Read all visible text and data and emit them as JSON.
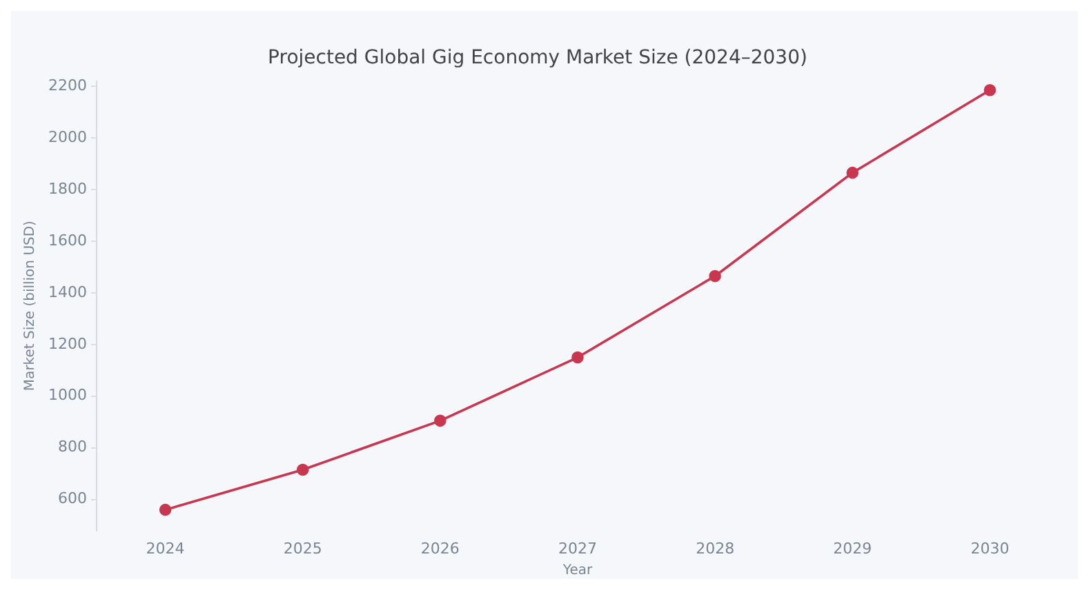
{
  "chart_data": {
    "type": "line",
    "title": "Projected Global Gig Economy Market Size (2024–2030)",
    "xlabel": "Year",
    "ylabel": "Market Size (billion USD)",
    "categories": [
      "2024",
      "2025",
      "2026",
      "2027",
      "2028",
      "2029",
      "2030"
    ],
    "series": [
      {
        "color": "#c8374f",
        "values": [
          560,
          715,
          905,
          1150,
          1465,
          1865,
          2185
        ]
      }
    ],
    "ylim": [
      480,
      2220
    ],
    "yticks": [
      600,
      800,
      1000,
      1200,
      1400,
      1600,
      1800,
      2000,
      2200
    ],
    "marker": "circle",
    "line_style": "solid",
    "legend": false,
    "grid": false
  }
}
